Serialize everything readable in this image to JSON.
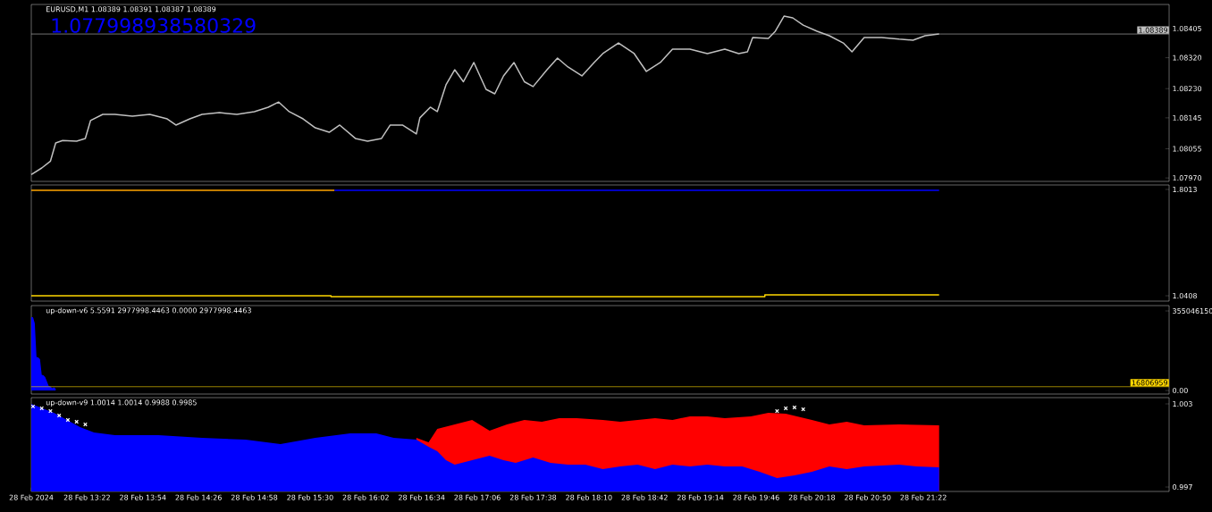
{
  "chart_data": [
    {
      "type": "line",
      "title": "EURUSD,M1  1.08389 1.08391 1.08387 1.08389",
      "annotations": [
        "1.077998938580329"
      ],
      "xlim": [
        "2024-02-28T12:50",
        "2024-02-28T23:43"
      ],
      "ylim": [
        1.0796,
        1.08475
      ],
      "tick_labels": "y",
      "yticks": [
        {
          "value": 1.0797,
          "label": "1.07970"
        },
        1.08055,
        1.08145,
        {
          "value": 1.0823,
          "label": "1.08230"
        },
        {
          "value": 1.0832,
          "label": "1.08320"
        },
        1.08405
      ],
      "ref_lines": [
        {
          "axis": "y",
          "value": 1.08389,
          "label": "1.08389",
          "color": "#c0c0c0"
        }
      ],
      "series": [
        {
          "color": "#c0c0c0",
          "x": [
            "2024-02-28T12:50",
            "2024-02-28T12:56",
            "2024-02-28T13:01",
            "2024-02-28T13:04",
            "2024-02-28T13:08",
            "2024-02-28T13:16",
            "2024-02-28T13:21",
            "2024-02-28T13:24",
            "2024-02-28T13:31",
            "2024-02-28T13:38",
            "2024-02-28T13:48",
            "2024-02-28T13:58",
            "2024-02-28T14:08",
            "2024-02-28T14:13",
            "2024-02-28T14:21",
            "2024-02-28T14:28",
            "2024-02-28T14:38",
            "2024-02-28T14:48",
            "2024-02-28T14:58",
            "2024-02-28T15:06",
            "2024-02-28T15:12",
            "2024-02-28T15:18",
            "2024-02-28T15:26",
            "2024-02-28T15:33",
            "2024-02-28T15:41",
            "2024-02-28T15:47",
            "2024-02-28T15:56",
            "2024-02-28T16:03",
            "2024-02-28T16:11",
            "2024-02-28T16:16",
            "2024-02-28T16:23",
            "2024-02-28T16:31",
            "2024-02-28T16:33",
            "2024-02-28T16:39",
            "2024-02-28T16:43",
            "2024-02-28T16:48",
            "2024-02-28T16:53",
            "2024-02-28T16:58",
            "2024-02-28T17:04",
            "2024-02-28T17:11",
            "2024-02-28T17:16",
            "2024-02-28T17:21",
            "2024-02-28T17:27",
            "2024-02-28T17:33",
            "2024-02-28T17:38",
            "2024-02-28T17:46",
            "2024-02-28T17:52",
            "2024-02-28T17:58",
            "2024-02-28T18:06",
            "2024-02-28T18:13",
            "2024-02-28T18:18",
            "2024-02-28T18:27",
            "2024-02-28T18:36",
            "2024-02-28T18:43",
            "2024-02-28T18:51",
            "2024-02-28T18:58",
            "2024-02-28T19:08",
            "2024-02-28T19:18",
            "2024-02-28T19:28",
            "2024-02-28T19:36",
            "2024-02-28T19:41",
            "2024-02-28T19:44",
            "2024-02-28T19:53",
            "2024-02-28T19:57",
            "2024-02-28T20:02",
            "2024-02-28T20:07",
            "2024-02-28T20:13",
            "2024-02-28T20:21",
            "2024-02-28T20:28",
            "2024-02-28T20:36",
            "2024-02-28T20:41",
            "2024-02-28T20:48",
            "2024-02-28T20:58",
            "2024-02-28T21:08",
            "2024-02-28T21:16",
            "2024-02-28T21:23",
            "2024-02-28T21:31"
          ],
          "values": [
            1.0798,
            1.07999,
            1.08019,
            1.08072,
            1.08079,
            1.08077,
            1.08085,
            1.08137,
            1.08155,
            1.08155,
            1.0815,
            1.08155,
            1.08142,
            1.08124,
            1.08142,
            1.08155,
            1.0816,
            1.08155,
            1.08163,
            1.08176,
            1.08191,
            1.08163,
            1.08142,
            1.08116,
            1.08103,
            1.08124,
            1.08085,
            1.08077,
            1.08085,
            1.08124,
            1.08124,
            1.08098,
            1.08145,
            1.08176,
            1.08163,
            1.08241,
            1.08285,
            1.0825,
            1.08306,
            1.08228,
            1.08215,
            1.08267,
            1.08306,
            1.0825,
            1.08236,
            1.08285,
            1.08319,
            1.08293,
            1.08267,
            1.08306,
            1.08332,
            1.08363,
            1.08332,
            1.0828,
            1.08306,
            1.08345,
            1.08345,
            1.08332,
            1.08345,
            1.08332,
            1.08337,
            1.08379,
            1.08376,
            1.08397,
            1.08441,
            1.08436,
            1.08415,
            1.08397,
            1.08384,
            1.08363,
            1.08337,
            1.08379,
            1.08379,
            1.08374,
            1.08371,
            1.08384,
            1.08389
          ]
        }
      ]
    },
    {
      "type": "line",
      "xlim": [
        "2024-02-28T12:50",
        "2024-02-28T23:43"
      ],
      "ylim": [
        1.0024,
        1.8333
      ],
      "tick_labels": "y",
      "yticks": [
        1.0408,
        1.8013
      ],
      "series": [
        {
          "color": "#ffa500",
          "x": [
            "2024-02-28T12:50",
            "2024-02-28T15:44"
          ],
          "values": [
            1.795,
            1.795
          ]
        },
        {
          "color": "#0000ff",
          "x": [
            "2024-02-28T15:44",
            "2024-02-28T21:31"
          ],
          "values": [
            1.795,
            1.795
          ]
        },
        {
          "color": "#ffd700",
          "x": [
            "2024-02-28T12:50",
            "2024-02-28T15:42",
            "2024-02-28T15:42",
            "2024-02-28T19:51",
            "2024-02-28T19:51",
            "2024-02-28T21:31"
          ],
          "values": [
            1.041,
            1.041,
            1.034,
            1.034,
            1.047,
            1.047
          ]
        }
      ]
    },
    {
      "type": "area",
      "title": "up-down-v6 5.5591 2977998.4463 0.0000 2977998.4463",
      "xlim": [
        "2024-02-28T12:50",
        "2024-02-28T23:43"
      ],
      "ylim": [
        -16000000,
        379000000
      ],
      "tick_labels": "y",
      "yticks": [
        {
          "value": 0,
          "label": "0.00"
        },
        355046150
      ],
      "ref_lines": [
        {
          "axis": "y",
          "value": 16806959,
          "label": "16806959",
          "color": "#ffd700"
        }
      ],
      "series": [
        {
          "color": "#0000ff",
          "x": [
            "2024-02-28T12:50",
            "2024-02-28T12:51",
            "2024-02-28T12:52",
            "2024-02-28T12:53",
            "2024-02-28T12:54",
            "2024-02-28T12:55",
            "2024-02-28T12:56",
            "2024-02-28T12:57",
            "2024-02-28T12:58",
            "2024-02-28T12:59",
            "2024-02-28T13:00",
            "2024-02-28T13:01",
            "2024-02-28T13:02",
            "2024-02-28T13:03",
            "2024-02-28T13:04"
          ],
          "values": [
            327000000,
            327000000,
            300000000,
            150000000,
            148000000,
            140000000,
            70000000,
            68000000,
            60000000,
            40000000,
            20000000,
            18000000,
            10000000,
            14000000,
            8000000
          ]
        }
      ]
    },
    {
      "type": "area",
      "title": "up-down-v9 1.0014 1.0014 0.9988 0.9985",
      "xlim": [
        "2024-02-28T12:50",
        "2024-02-28T23:43"
      ],
      "ylim": [
        0.99668,
        1.00345
      ],
      "yticks": [
        0.997,
        1.003
      ],
      "xticks": [
        {
          "value": "2024-02-28T12:50",
          "label": "28 Feb 2024"
        },
        {
          "value": "2024-02-28T13:22",
          "label": "28 Feb 13:22"
        },
        {
          "value": "2024-02-28T13:54",
          "label": "28 Feb 13:54"
        },
        {
          "value": "2024-02-28T14:26",
          "label": "28 Feb 14:26"
        },
        {
          "value": "2024-02-28T14:58",
          "label": "28 Feb 14:58"
        },
        {
          "value": "2024-02-28T15:30",
          "label": "28 Feb 15:30"
        },
        {
          "value": "2024-02-28T16:02",
          "label": "28 Feb 16:02"
        },
        {
          "value": "2024-02-28T16:34",
          "label": "28 Feb 16:34"
        },
        {
          "value": "2024-02-28T17:06",
          "label": "28 Feb 17:06"
        },
        {
          "value": "2024-02-28T17:38",
          "label": "28 Feb 17:38"
        },
        {
          "value": "2024-02-28T18:10",
          "label": "28 Feb 18:10"
        },
        {
          "value": "2024-02-28T18:42",
          "label": "28 Feb 18:42"
        },
        {
          "value": "2024-02-28T19:14",
          "label": "28 Feb 19:14"
        },
        {
          "value": "2024-02-28T19:46",
          "label": "28 Feb 19:46"
        },
        {
          "value": "2024-02-28T20:18",
          "label": "28 Feb 20:18"
        },
        {
          "value": "2024-02-28T20:50",
          "label": "28 Feb 20:50"
        },
        {
          "value": "2024-02-28T21:22",
          "label": "28 Feb 21:22"
        }
      ],
      "series": [
        {
          "color": "#ff0000",
          "x": [
            "2024-02-28T16:31",
            "2024-02-28T16:38",
            "2024-02-28T16:43",
            "2024-02-28T16:53",
            "2024-02-28T17:03",
            "2024-02-28T17:13",
            "2024-02-28T17:23",
            "2024-02-28T17:33",
            "2024-02-28T17:43",
            "2024-02-28T17:53",
            "2024-02-28T18:03",
            "2024-02-28T18:18",
            "2024-02-28T18:28",
            "2024-02-28T18:38",
            "2024-02-28T18:48",
            "2024-02-28T18:58",
            "2024-02-28T19:08",
            "2024-02-28T19:18",
            "2024-02-28T19:28",
            "2024-02-28T19:43",
            "2024-02-28T19:53",
            "2024-02-28T20:03",
            "2024-02-28T20:18",
            "2024-02-28T20:28",
            "2024-02-28T20:38",
            "2024-02-28T20:48",
            "2024-02-28T21:08",
            "2024-02-28T21:31"
          ],
          "values": [
            1.00055,
            1.00023,
            1.00119,
            1.00152,
            1.00184,
            1.00106,
            1.00152,
            1.00184,
            1.00171,
            1.00197,
            1.00197,
            1.00184,
            1.00171,
            1.00184,
            1.00197,
            1.00184,
            1.0021,
            1.0021,
            1.00197,
            1.0021,
            1.00235,
            1.00229,
            1.00184,
            1.00152,
            1.00171,
            1.00145,
            1.00152,
            1.00145
          ]
        },
        {
          "color": "#0000ff",
          "x": [
            "2024-02-28T12:50",
            "2024-02-28T13:03",
            "2024-02-28T13:18",
            "2024-02-28T13:26",
            "2024-02-28T13:38",
            "2024-02-28T14:03",
            "2024-02-28T14:28",
            "2024-02-28T14:53",
            "2024-02-28T15:13",
            "2024-02-28T15:33",
            "2024-02-28T15:53",
            "2024-02-28T16:08",
            "2024-02-28T16:18",
            "2024-02-28T16:31",
            "2024-02-28T16:38",
            "2024-02-28T16:43",
            "2024-02-28T16:48",
            "2024-02-28T16:53",
            "2024-02-28T17:03",
            "2024-02-28T17:13",
            "2024-02-28T17:21",
            "2024-02-28T17:28",
            "2024-02-28T17:38",
            "2024-02-28T17:48",
            "2024-02-28T17:58",
            "2024-02-28T18:08",
            "2024-02-28T18:18",
            "2024-02-28T18:28",
            "2024-02-28T18:38",
            "2024-02-28T18:48",
            "2024-02-28T18:58",
            "2024-02-28T19:08",
            "2024-02-28T19:18",
            "2024-02-28T19:28",
            "2024-02-28T19:38",
            "2024-02-28T19:48",
            "2024-02-28T19:58",
            "2024-02-28T20:08",
            "2024-02-28T20:18",
            "2024-02-28T20:28",
            "2024-02-28T20:38",
            "2024-02-28T20:48",
            "2024-02-28T21:08",
            "2024-02-28T21:18",
            "2024-02-28T21:31"
          ],
          "values": [
            1.003,
            1.00235,
            1.00132,
            1.00094,
            1.00074,
            1.00074,
            1.00055,
            1.00042,
            1.0001,
            1.00055,
            1.00087,
            1.00087,
            1.00055,
            1.00042,
            0.9999,
            0.99958,
            0.99894,
            0.99861,
            0.99894,
            0.99926,
            0.99894,
            0.99874,
            0.99913,
            0.99874,
            0.99861,
            0.99861,
            0.99829,
            0.99848,
            0.99861,
            0.99829,
            0.99861,
            0.99848,
            0.99861,
            0.99848,
            0.99848,
            0.9981,
            0.99765,
            0.99784,
            0.9981,
            0.99848,
            0.99829,
            0.99848,
            0.99861,
            0.99848,
            0.99842
          ]
        },
        {
          "type": "scatter",
          "marker": "cross",
          "color": "#ffffff",
          "x": [
            "2024-02-28T12:51",
            "2024-02-28T12:56",
            "2024-02-28T13:01",
            "2024-02-28T13:06",
            "2024-02-28T13:11",
            "2024-02-28T13:16",
            "2024-02-28T13:21",
            "2024-02-28T19:58",
            "2024-02-28T20:03",
            "2024-02-28T20:08",
            "2024-02-28T20:13"
          ],
          "values": [
            1.00281,
            1.00268,
            1.00248,
            1.00216,
            1.00184,
            1.00171,
            1.00152,
            1.00248,
            1.00268,
            1.00274,
            1.00261
          ]
        }
      ]
    }
  ]
}
